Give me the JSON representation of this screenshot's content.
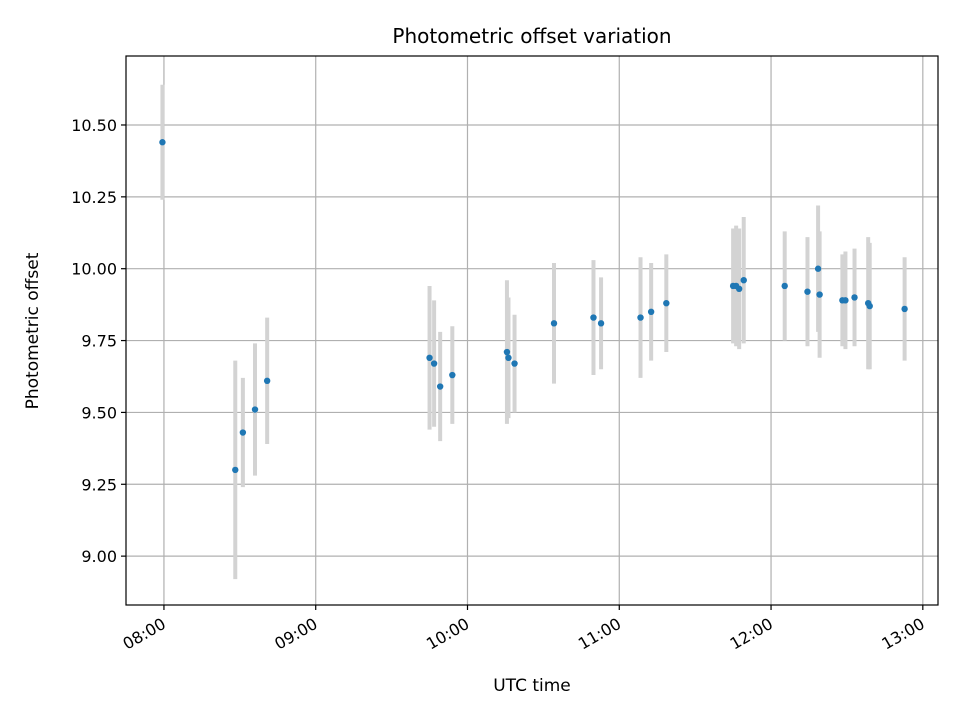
{
  "chart_data": {
    "type": "scatter",
    "title": "Photometric offset variation",
    "xlabel": "UTC time",
    "ylabel": "Photometric offset",
    "xlim": [
      7.75,
      13.1
    ],
    "ylim": [
      8.83,
      10.74
    ],
    "x_ticks": [
      {
        "value": 8,
        "label": "08:00"
      },
      {
        "value": 9,
        "label": "09:00"
      },
      {
        "value": 10,
        "label": "10:00"
      },
      {
        "value": 11,
        "label": "11:00"
      },
      {
        "value": 12,
        "label": "12:00"
      },
      {
        "value": 13,
        "label": "13:00"
      }
    ],
    "y_ticks": [
      {
        "value": 9.0,
        "label": "9.00"
      },
      {
        "value": 9.25,
        "label": "9.25"
      },
      {
        "value": 9.5,
        "label": "9.50"
      },
      {
        "value": 9.75,
        "label": "9.75"
      },
      {
        "value": 10.0,
        "label": "10.00"
      },
      {
        "value": 10.25,
        "label": "10.25"
      },
      {
        "value": 10.5,
        "label": "10.50"
      }
    ],
    "grid": true,
    "colors": {
      "point": "#1f77b4",
      "errorbar": "#d3d3d3",
      "grid": "#b0b0b0"
    },
    "points": [
      {
        "x": 7.99,
        "y": 10.44,
        "err": 0.2
      },
      {
        "x": 8.47,
        "y": 9.3,
        "err": 0.38
      },
      {
        "x": 8.52,
        "y": 9.43,
        "err": 0.19
      },
      {
        "x": 8.6,
        "y": 9.51,
        "err": 0.23
      },
      {
        "x": 8.68,
        "y": 9.61,
        "err": 0.22
      },
      {
        "x": 9.75,
        "y": 9.69,
        "err": 0.25
      },
      {
        "x": 9.78,
        "y": 9.67,
        "err": 0.22
      },
      {
        "x": 9.82,
        "y": 9.59,
        "err": 0.19
      },
      {
        "x": 9.9,
        "y": 9.63,
        "err": 0.17
      },
      {
        "x": 10.26,
        "y": 9.71,
        "err": 0.25
      },
      {
        "x": 10.27,
        "y": 9.69,
        "err": 0.21
      },
      {
        "x": 10.31,
        "y": 9.67,
        "err": 0.17
      },
      {
        "x": 10.57,
        "y": 9.81,
        "err": 0.21
      },
      {
        "x": 10.83,
        "y": 9.83,
        "err": 0.2
      },
      {
        "x": 10.88,
        "y": 9.81,
        "err": 0.16
      },
      {
        "x": 11.14,
        "y": 9.83,
        "err": 0.21
      },
      {
        "x": 11.21,
        "y": 9.85,
        "err": 0.17
      },
      {
        "x": 11.31,
        "y": 9.88,
        "err": 0.17
      },
      {
        "x": 11.75,
        "y": 9.94,
        "err": 0.2
      },
      {
        "x": 11.77,
        "y": 9.94,
        "err": 0.21
      },
      {
        "x": 11.79,
        "y": 9.93,
        "err": 0.21
      },
      {
        "x": 11.82,
        "y": 9.96,
        "err": 0.22
      },
      {
        "x": 12.09,
        "y": 9.94,
        "err": 0.19
      },
      {
        "x": 12.24,
        "y": 9.92,
        "err": 0.19
      },
      {
        "x": 12.31,
        "y": 10.0,
        "err": 0.22
      },
      {
        "x": 12.32,
        "y": 9.91,
        "err": 0.22
      },
      {
        "x": 12.47,
        "y": 9.89,
        "err": 0.16
      },
      {
        "x": 12.49,
        "y": 9.89,
        "err": 0.17
      },
      {
        "x": 12.55,
        "y": 9.9,
        "err": 0.17
      },
      {
        "x": 12.64,
        "y": 9.88,
        "err": 0.23
      },
      {
        "x": 12.65,
        "y": 9.87,
        "err": 0.22
      },
      {
        "x": 12.88,
        "y": 9.86,
        "err": 0.18
      }
    ]
  }
}
